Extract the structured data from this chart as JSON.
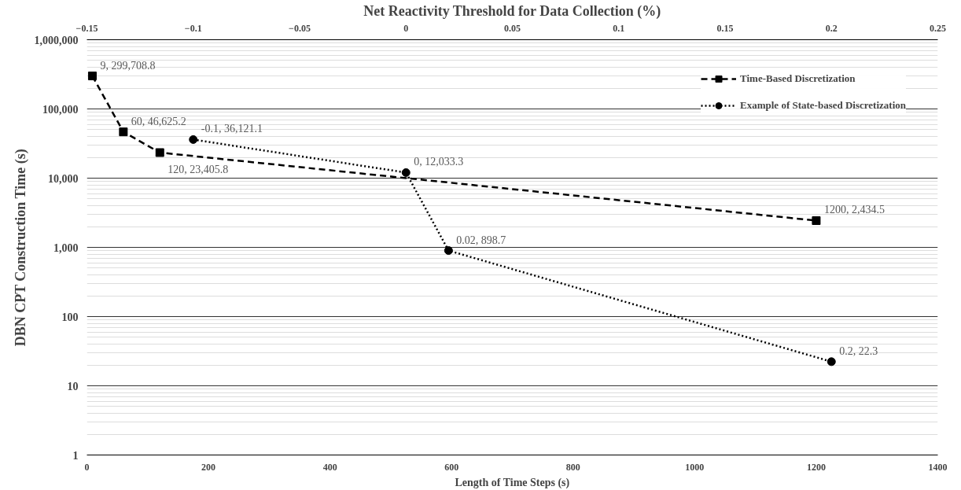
{
  "chart_data": {
    "type": "line",
    "xlabel": "Length of Time Steps (s)",
    "ylabel": "DBN CPT Construction Time (s)",
    "x2label": "Net Reactivity Threshold for Data Collection (%)",
    "xlim": [
      0,
      1400
    ],
    "xticks": [
      0,
      200,
      400,
      600,
      800,
      1000,
      1200,
      1400
    ],
    "x2lim": [
      -0.15,
      0.25
    ],
    "x2ticks": [
      -0.15,
      -0.1,
      -0.05,
      0,
      0.05,
      0.1,
      0.15,
      0.2,
      0.25
    ],
    "ylim": [
      1,
      1000000
    ],
    "log": "y",
    "yticks": [
      {
        "value": 1,
        "label": "1"
      },
      {
        "value": 10,
        "label": "10"
      },
      {
        "value": 100,
        "label": "100"
      },
      {
        "value": 1000,
        "label": "1,000"
      },
      {
        "value": 10000,
        "label": "10,000"
      },
      {
        "value": 100000,
        "label": "100,000"
      },
      {
        "value": 1000000,
        "label": "1,000,000"
      }
    ],
    "grid": "y",
    "legend": "top right",
    "series": [
      {
        "name": "Time-Based Discretization",
        "color": "#000000",
        "marker": "square",
        "line_style": "dashed",
        "x": [
          9,
          60,
          120,
          1200
        ],
        "values": [
          299708.8,
          46625.2,
          23405.8,
          2434.5
        ],
        "value_labels": [
          "9, 299,708.8",
          "60, 46,625.2",
          "120, 23,405.8",
          "1200, 2,434.5"
        ]
      },
      {
        "name": "Example of State-based Discretization",
        "color": "#000000",
        "marker": "circle",
        "line_style": "dotted",
        "axis": "x2",
        "x": [
          -0.1,
          0,
          0.02,
          0.2
        ],
        "values": [
          36121.1,
          12033.3,
          898.7,
          22.3
        ],
        "value_labels": [
          "-0.1, 36,121.1",
          "0, 12,033.3",
          "0.02, 898.7",
          "0.2, 22.3"
        ]
      }
    ]
  }
}
